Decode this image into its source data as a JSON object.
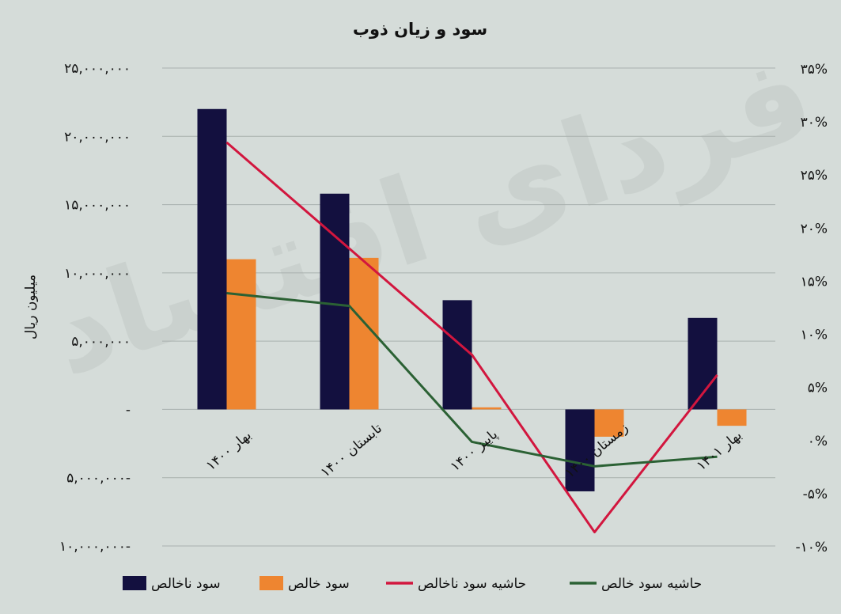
{
  "chart_data": {
    "type": "bar",
    "title": "سود و زیان ذوب",
    "ylabel": "میلیون ریال",
    "categories": [
      "بهار ۱۴۰۰",
      "تابستان ۱۴۰۰",
      "پاییز ۱۴۰۰",
      "زمستان ۱۴۰۰",
      "بهار ۱۴۰۱"
    ],
    "ylim": [
      -10000000,
      25000000
    ],
    "y2lim": [
      -0.1,
      0.35
    ],
    "y_ticks": [
      {
        "value": 25000000,
        "label": "۲۵,۰۰۰,۰۰۰"
      },
      {
        "value": 20000000,
        "label": "۲۰,۰۰۰,۰۰۰"
      },
      {
        "value": 15000000,
        "label": "۱۵,۰۰۰,۰۰۰"
      },
      {
        "value": 10000000,
        "label": "۱۰,۰۰۰,۰۰۰"
      },
      {
        "value": 5000000,
        "label": "۵,۰۰۰,۰۰۰"
      },
      {
        "value": 0,
        "label": "-"
      },
      {
        "value": -5000000,
        "label": "۵,۰۰۰,۰۰۰-"
      },
      {
        "value": -10000000,
        "label": "۱۰,۰۰۰,۰۰۰-"
      }
    ],
    "y2_ticks": [
      {
        "value": 0.35,
        "label": "۳۵%"
      },
      {
        "value": 0.3,
        "label": "۳۰%"
      },
      {
        "value": 0.25,
        "label": "۲۵%"
      },
      {
        "value": 0.2,
        "label": "۲۰%"
      },
      {
        "value": 0.15,
        "label": "۱۵%"
      },
      {
        "value": 0.1,
        "label": "۱۰%"
      },
      {
        "value": 0.05,
        "label": "۵%"
      },
      {
        "value": 0.0,
        "label": "۰%"
      },
      {
        "value": -0.05,
        "label": "-۵%"
      },
      {
        "value": -0.1,
        "label": "-۱۰%"
      }
    ],
    "series": [
      {
        "name": "سود ناخالص",
        "kind": "bar",
        "axis": "left",
        "color": "#13103f",
        "values": [
          22000000,
          15800000,
          8000000,
          -6000000,
          6700000
        ]
      },
      {
        "name": "سود خالص",
        "kind": "bar",
        "axis": "left",
        "color": "#ee8530",
        "values": [
          11000000,
          11100000,
          150000,
          -2000000,
          -1200000
        ]
      },
      {
        "name": "حاشیه سود ناخالص",
        "kind": "line",
        "axis": "right",
        "color": "#d2163e",
        "values": [
          0.28,
          0.18,
          0.08,
          -0.087,
          0.061
        ]
      },
      {
        "name": "حاشیه سود خالص",
        "kind": "line",
        "axis": "right",
        "color": "#2b6134",
        "values": [
          0.138,
          0.126,
          -0.002,
          -0.025,
          -0.016
        ]
      }
    ],
    "grid": true,
    "legend_position": "bottom",
    "watermark": "فردای اقتصاد"
  }
}
